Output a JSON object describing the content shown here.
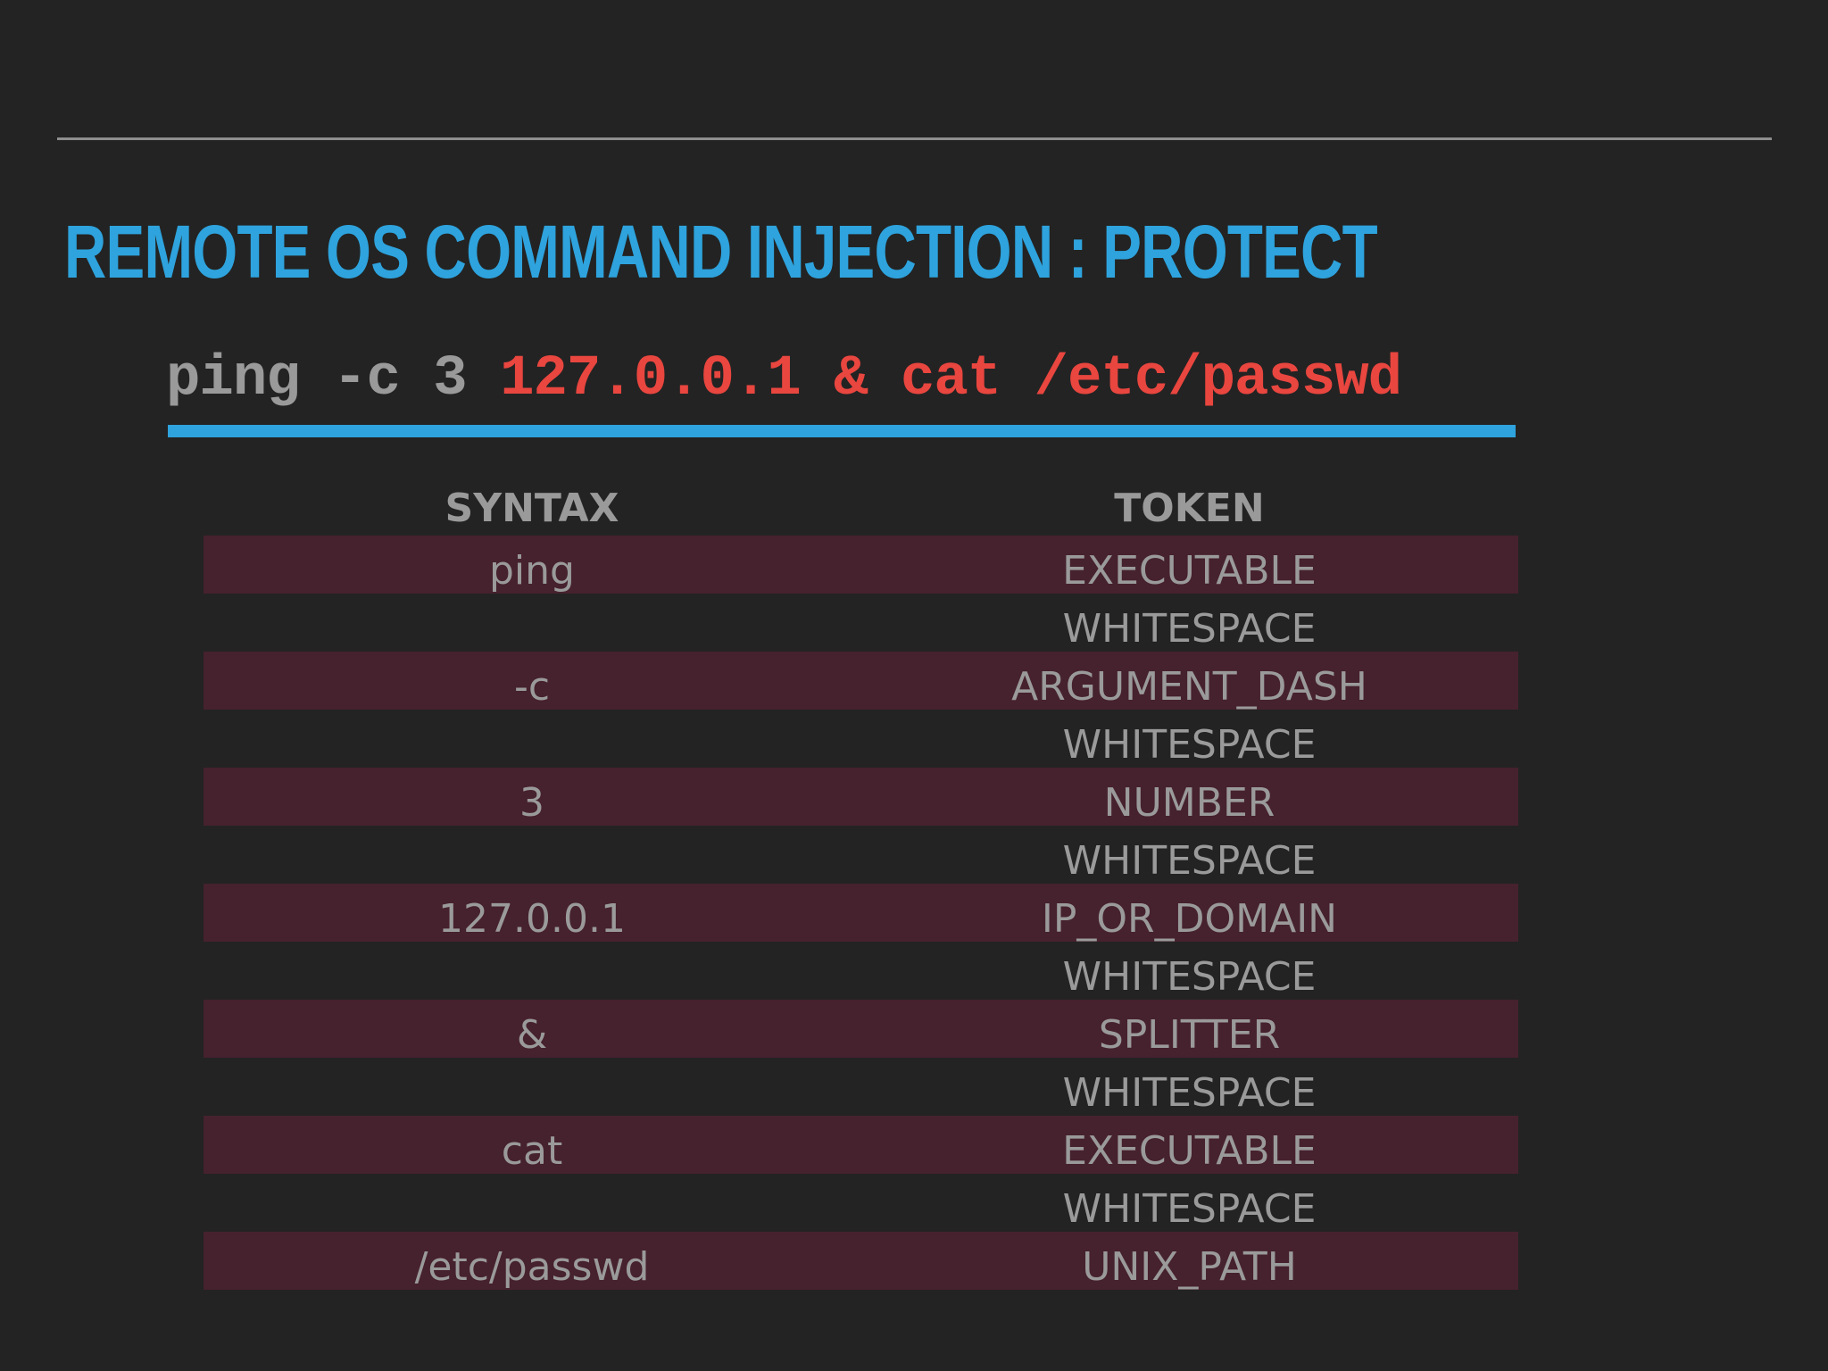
{
  "slide": {
    "title": "REMOTE OS COMMAND INJECTION : PROTECT",
    "command_prefix": "ping -c 3 ",
    "command_injected": "127.0.0.1 & cat /etc/passwd"
  },
  "table": {
    "headers": {
      "syntax": "SYNTAX",
      "token": "TOKEN"
    },
    "rows": [
      {
        "syntax": "ping",
        "token": "EXECUTABLE",
        "highlight": true
      },
      {
        "syntax": "",
        "token": "WHITESPACE",
        "highlight": false
      },
      {
        "syntax": "-c",
        "token": "ARGUMENT_DASH",
        "highlight": true
      },
      {
        "syntax": "",
        "token": "WHITESPACE",
        "highlight": false
      },
      {
        "syntax": "3",
        "token": "NUMBER",
        "highlight": true
      },
      {
        "syntax": "",
        "token": "WHITESPACE",
        "highlight": false
      },
      {
        "syntax": "127.0.0.1",
        "token": "IP_OR_DOMAIN",
        "highlight": true
      },
      {
        "syntax": "",
        "token": "WHITESPACE",
        "highlight": false
      },
      {
        "syntax": "&",
        "token": "SPLITTER",
        "highlight": true
      },
      {
        "syntax": "",
        "token": "WHITESPACE",
        "highlight": false
      },
      {
        "syntax": "cat",
        "token": "EXECUTABLE",
        "highlight": true
      },
      {
        "syntax": "",
        "token": "WHITESPACE",
        "highlight": false
      },
      {
        "syntax": "/etc/passwd",
        "token": "UNIX_PATH",
        "highlight": true
      }
    ]
  },
  "colors": {
    "background": "#232323",
    "title": "#2ea3dd",
    "injected": "#e8463f",
    "text": "#9a9a9a",
    "row_highlight": "#46212e"
  }
}
